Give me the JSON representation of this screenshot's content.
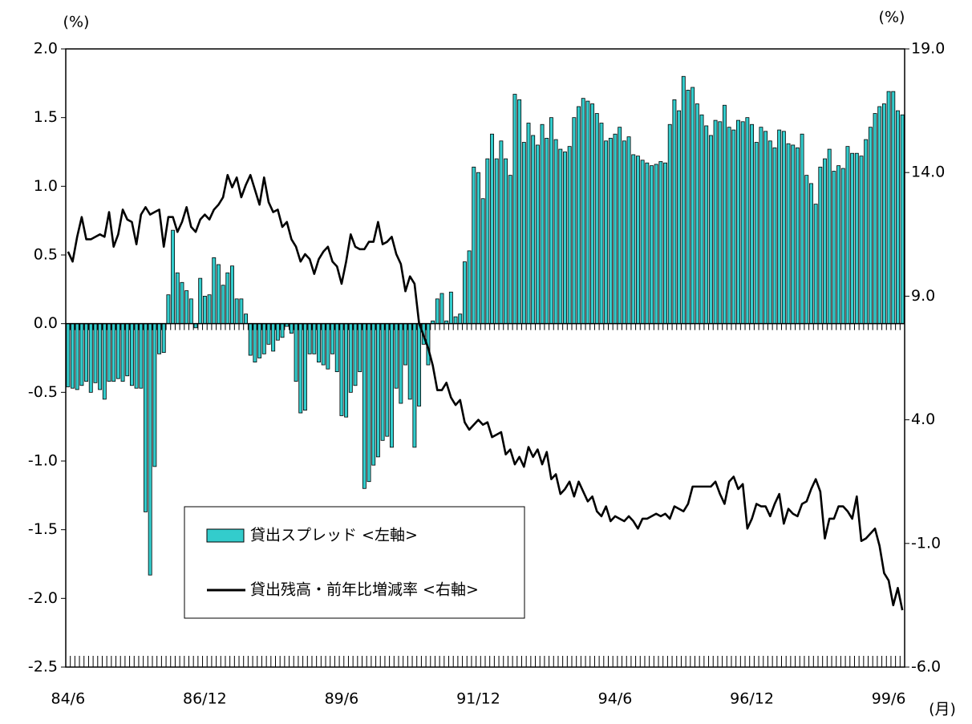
{
  "chart_data": {
    "type": "bar",
    "y_unit": "(%)",
    "y2_unit": "(%)",
    "x_unit": "(月)",
    "ylim": [
      -2.5,
      2.0
    ],
    "yticks": [
      {
        "value": 2,
        "label": "2.0"
      },
      1.5,
      {
        "value": 1,
        "label": "1.0"
      },
      0.5,
      {
        "value": 0,
        "label": "0.0"
      },
      -0.5,
      {
        "value": -1,
        "label": "-1.0"
      },
      -1.5,
      {
        "value": -2,
        "label": "-2.0"
      },
      -2.5
    ],
    "y2lim": [
      -6,
      19
    ],
    "y2ticks": [
      {
        "value": 19,
        "label": "19.0"
      },
      {
        "value": 14,
        "label": "14.0"
      },
      {
        "value": 9,
        "label": "9.0"
      },
      {
        "value": 4,
        "label": "4.0"
      },
      {
        "value": -1,
        "label": "-1.0"
      },
      {
        "value": -6,
        "label": "-6.0"
      }
    ],
    "categories": [
      "84/6",
      null,
      null,
      null,
      null,
      null,
      null,
      null,
      null,
      null,
      null,
      null,
      null,
      null,
      null,
      null,
      null,
      null,
      null,
      null,
      null,
      null,
      null,
      null,
      null,
      null,
      null,
      null,
      null,
      null,
      "86/12",
      null,
      null,
      null,
      null,
      null,
      null,
      null,
      null,
      null,
      null,
      null,
      null,
      null,
      null,
      null,
      null,
      null,
      null,
      null,
      null,
      null,
      null,
      null,
      null,
      null,
      null,
      null,
      null,
      null,
      "89/6",
      null,
      null,
      null,
      null,
      null,
      null,
      null,
      null,
      null,
      null,
      null,
      null,
      null,
      null,
      null,
      null,
      null,
      null,
      null,
      null,
      null,
      null,
      null,
      null,
      null,
      null,
      null,
      null,
      null,
      "91/12",
      null,
      null,
      null,
      null,
      null,
      null,
      null,
      null,
      null,
      null,
      null,
      null,
      null,
      null,
      null,
      null,
      null,
      null,
      null,
      null,
      null,
      null,
      null,
      null,
      null,
      null,
      null,
      null,
      null,
      "94/6",
      null,
      null,
      null,
      null,
      null,
      null,
      null,
      null,
      null,
      null,
      null,
      null,
      null,
      null,
      null,
      null,
      null,
      null,
      null,
      null,
      null,
      null,
      null,
      null,
      null,
      null,
      null,
      null,
      null,
      "96/12",
      null,
      null,
      null,
      null,
      null,
      null,
      null,
      null,
      null,
      null,
      null,
      null,
      null,
      null,
      null,
      null,
      null,
      null,
      null,
      null,
      null,
      null,
      null,
      null,
      null,
      null,
      null,
      null,
      null,
      "99/6",
      null,
      null,
      null
    ],
    "series": [
      {
        "name": "貸出スプレッド <左軸>",
        "type": "bar",
        "axis": "y",
        "color": "#33cccc",
        "values": [
          -0.46,
          -0.47,
          -0.48,
          -0.45,
          -0.42,
          -0.5,
          -0.43,
          -0.48,
          -0.55,
          -0.42,
          -0.42,
          -0.4,
          -0.42,
          -0.38,
          -0.45,
          -0.47,
          -0.47,
          -1.37,
          -1.83,
          -1.04,
          -0.22,
          -0.21,
          0.21,
          0.68,
          0.37,
          0.3,
          0.24,
          0.18,
          -0.03,
          0.33,
          0.2,
          0.21,
          0.48,
          0.43,
          0.28,
          0.37,
          0.42,
          0.18,
          0.18,
          0.07,
          -0.23,
          -0.28,
          -0.25,
          -0.22,
          -0.15,
          -0.2,
          -0.12,
          -0.1,
          -0.02,
          -0.07,
          -0.42,
          -0.65,
          -0.63,
          -0.22,
          -0.22,
          -0.28,
          -0.3,
          -0.33,
          -0.22,
          -0.35,
          -0.67,
          -0.68,
          -0.5,
          -0.45,
          -0.35,
          -1.2,
          -1.15,
          -1.03,
          -0.97,
          -0.85,
          -0.82,
          -0.9,
          -0.47,
          -0.58,
          -0.3,
          -0.55,
          -0.9,
          -0.6,
          -0.15,
          -0.3,
          0.02,
          0.18,
          0.22,
          0.02,
          0.23,
          0.05,
          0.07,
          0.45,
          0.53,
          1.14,
          1.1,
          0.91,
          1.2,
          1.38,
          1.2,
          1.33,
          1.2,
          1.08,
          1.67,
          1.63,
          1.32,
          1.46,
          1.37,
          1.3,
          1.45,
          1.35,
          1.5,
          1.34,
          1.27,
          1.25,
          1.29,
          1.5,
          1.58,
          1.64,
          1.62,
          1.6,
          1.53,
          1.46,
          1.33,
          1.35,
          1.38,
          1.43,
          1.33,
          1.36,
          1.23,
          1.22,
          1.19,
          1.17,
          1.15,
          1.16,
          1.18,
          1.17,
          1.45,
          1.63,
          1.55,
          1.8,
          1.7,
          1.72,
          1.6,
          1.52,
          1.44,
          1.37,
          1.48,
          1.47,
          1.59,
          1.43,
          1.41,
          1.48,
          1.47,
          1.5,
          1.45,
          1.32,
          1.43,
          1.4,
          1.33,
          1.28,
          1.41,
          1.4,
          1.31,
          1.3,
          1.28,
          1.38,
          1.08,
          1.02,
          0.87,
          1.14,
          1.2,
          1.27,
          1.11,
          1.15,
          1.13,
          1.29,
          1.24,
          1.24,
          1.22,
          1.34,
          1.43,
          1.53,
          1.58,
          1.6,
          1.69,
          1.69,
          1.55,
          1.52
        ]
      },
      {
        "name": "貸出残高・前年比増減率 <右軸>",
        "type": "line",
        "axis": "y2",
        "color": "#000000",
        "values": [
          10.8,
          10.4,
          11.4,
          12.2,
          11.3,
          11.3,
          11.4,
          11.5,
          11.4,
          12.4,
          11.0,
          11.5,
          12.5,
          12.1,
          12.0,
          11.1,
          12.3,
          12.6,
          12.3,
          12.4,
          12.5,
          11.0,
          12.2,
          12.2,
          11.6,
          12.0,
          12.6,
          11.8,
          11.6,
          12.1,
          12.3,
          12.1,
          12.5,
          12.7,
          13.0,
          13.9,
          13.4,
          13.8,
          13.0,
          13.5,
          13.9,
          13.3,
          12.7,
          13.8,
          12.8,
          12.4,
          12.5,
          11.8,
          12.0,
          11.3,
          11.0,
          10.4,
          10.7,
          10.5,
          9.9,
          10.5,
          10.8,
          11.0,
          10.4,
          10.2,
          9.5,
          10.4,
          11.5,
          11.0,
          10.9,
          10.9,
          11.2,
          11.2,
          12.0,
          11.1,
          11.2,
          11.4,
          10.7,
          10.3,
          9.2,
          9.8,
          9.5,
          7.9,
          7.4,
          6.9,
          6.2,
          5.2,
          5.2,
          5.5,
          4.9,
          4.6,
          4.8,
          3.9,
          3.6,
          3.8,
          4.0,
          3.8,
          3.9,
          3.3,
          3.4,
          3.5,
          2.6,
          2.8,
          2.2,
          2.5,
          2.1,
          2.9,
          2.5,
          2.8,
          2.2,
          2.7,
          1.6,
          1.8,
          1.0,
          1.2,
          1.5,
          0.9,
          1.5,
          1.1,
          0.7,
          0.9,
          0.3,
          0.1,
          0.5,
          -0.1,
          0.1,
          0.0,
          -0.1,
          0.1,
          -0.1,
          -0.4,
          0.0,
          0.0,
          0.1,
          0.2,
          0.1,
          0.2,
          0.0,
          0.5,
          0.4,
          0.3,
          0.6,
          1.3,
          1.3,
          1.3,
          1.3,
          1.3,
          1.5,
          1.0,
          0.6,
          1.5,
          1.7,
          1.2,
          1.4,
          -0.4,
          0.0,
          0.6,
          0.5,
          0.5,
          0.1,
          0.6,
          1.0,
          -0.2,
          0.4,
          0.2,
          0.1,
          0.6,
          0.7,
          1.2,
          1.6,
          1.1,
          -0.8,
          0.0,
          0.0,
          0.5,
          0.5,
          0.3,
          0.0,
          0.9,
          -0.9,
          -0.8,
          -0.6,
          -0.4,
          -1.1,
          -2.2,
          -2.5,
          -3.5,
          -2.8,
          -3.7
        ]
      }
    ]
  }
}
